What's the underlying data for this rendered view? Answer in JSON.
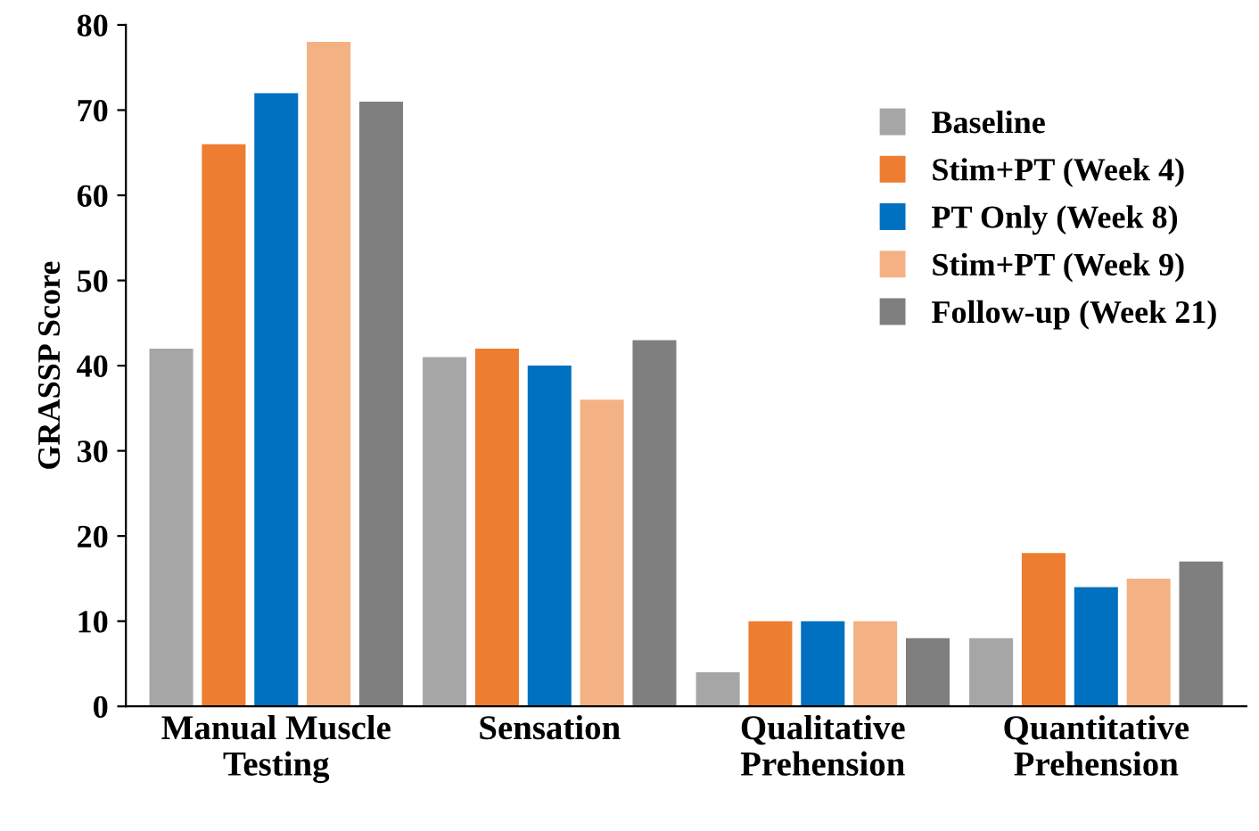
{
  "chart_data": {
    "type": "bar",
    "ylabel": "GRASSP Score",
    "categories": [
      "Manual Muscle\nTesting",
      "Sensation",
      "Qualitative\nPrehension",
      "Quantitative\nPrehension"
    ],
    "series": [
      {
        "name": "Baseline",
        "color": "#a6a6a6",
        "values": [
          42,
          41,
          4,
          8
        ]
      },
      {
        "name": "Stim+PT (Week 4)",
        "color": "#ed7d31",
        "values": [
          66,
          42,
          10,
          18
        ]
      },
      {
        "name": "PT Only (Week 8)",
        "color": "#0070c0",
        "values": [
          72,
          40,
          10,
          14
        ]
      },
      {
        "name": "Stim+PT (Week 9)",
        "color": "#f4b183",
        "values": [
          78,
          36,
          10,
          15
        ]
      },
      {
        "name": "Follow-up (Week 21)",
        "color": "#7f7f7f",
        "values": [
          71,
          43,
          8,
          17
        ]
      }
    ],
    "ylim": [
      0,
      80
    ],
    "yticks": [
      0,
      10,
      20,
      30,
      40,
      50,
      60,
      70,
      80
    ],
    "grid": false,
    "legend": "top right"
  }
}
